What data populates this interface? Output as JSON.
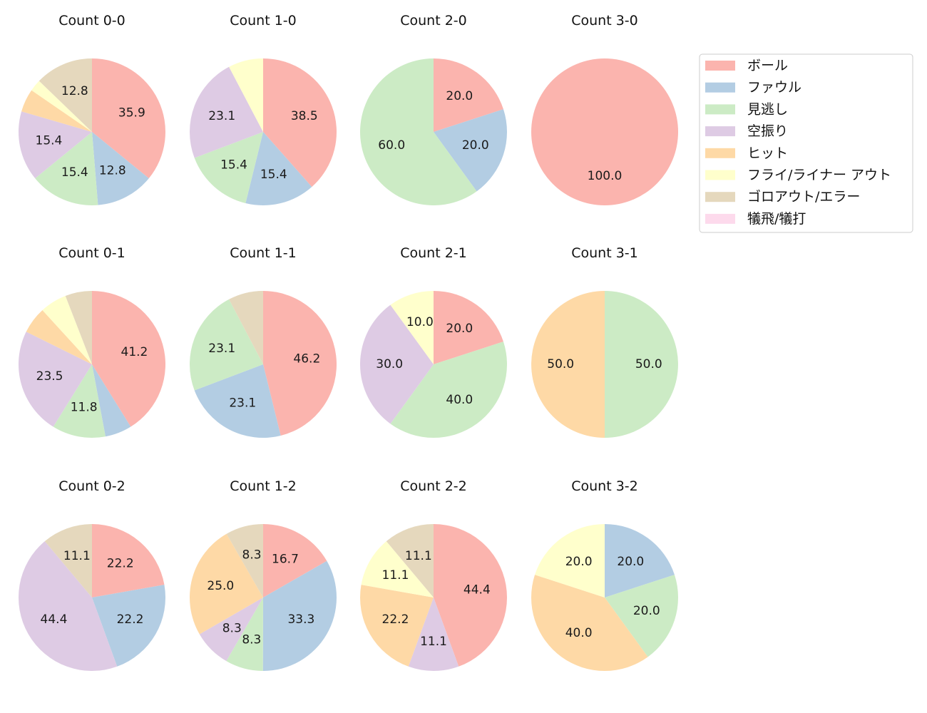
{
  "chart_data": {
    "type": "pie",
    "legend": {
      "position": "top-right",
      "entries": [
        {
          "name": "ボール",
          "color": "#fbb4ae"
        },
        {
          "name": "ファウル",
          "color": "#b3cde3"
        },
        {
          "name": "見逃し",
          "color": "#ccebc5"
        },
        {
          "name": "空振り",
          "color": "#decbe4"
        },
        {
          "name": "ヒット",
          "color": "#fed9a6"
        },
        {
          "name": "フライ/ライナー アウト",
          "color": "#ffffcc"
        },
        {
          "name": "ゴロアウト/エラー",
          "color": "#e5d8bd"
        },
        {
          "name": "犠飛/犠打",
          "color": "#fddaec"
        }
      ]
    },
    "pies": [
      {
        "title": "Count 0-0",
        "values": [
          35.9,
          12.8,
          15.4,
          15.4,
          5.1,
          2.6,
          12.8,
          0
        ],
        "labels": [
          "35.9",
          "12.8",
          "15.4",
          "15.4",
          "",
          "",
          "12.8",
          ""
        ]
      },
      {
        "title": "Count 1-0",
        "values": [
          38.5,
          15.4,
          15.4,
          23.1,
          0,
          7.7,
          0,
          0
        ],
        "labels": [
          "38.5",
          "15.4",
          "15.4",
          "23.1",
          "",
          "",
          "",
          ""
        ]
      },
      {
        "title": "Count 2-0",
        "values": [
          20.0,
          20.0,
          60.0,
          0,
          0,
          0,
          0,
          0
        ],
        "labels": [
          "20.0",
          "20.0",
          "60.0",
          "",
          "",
          "",
          "",
          ""
        ]
      },
      {
        "title": "Count 3-0",
        "values": [
          100.0,
          0,
          0,
          0,
          0,
          0,
          0,
          0
        ],
        "labels": [
          "100.0",
          "",
          "",
          "",
          "",
          "",
          "",
          ""
        ]
      },
      {
        "title": "Count 0-1",
        "values": [
          41.2,
          5.9,
          11.8,
          23.5,
          5.9,
          5.9,
          5.9,
          0
        ],
        "labels": [
          "41.2",
          "",
          "11.8",
          "23.5",
          "",
          "",
          "",
          ""
        ]
      },
      {
        "title": "Count 1-1",
        "values": [
          46.2,
          23.1,
          23.1,
          0,
          0,
          0,
          7.7,
          0
        ],
        "labels": [
          "46.2",
          "23.1",
          "23.1",
          "",
          "",
          "",
          "",
          ""
        ]
      },
      {
        "title": "Count 2-1",
        "values": [
          20.0,
          0,
          40.0,
          30.0,
          0,
          10.0,
          0,
          0
        ],
        "labels": [
          "20.0",
          "",
          "40.0",
          "30.0",
          "",
          "10.0",
          "",
          ""
        ]
      },
      {
        "title": "Count 3-1",
        "values": [
          0,
          0,
          50.0,
          0,
          50.0,
          0,
          0,
          0
        ],
        "labels": [
          "",
          "",
          "50.0",
          "",
          "50.0",
          "",
          "",
          ""
        ]
      },
      {
        "title": "Count 0-2",
        "values": [
          22.2,
          22.2,
          0,
          44.4,
          0,
          0,
          11.1,
          0
        ],
        "labels": [
          "22.2",
          "22.2",
          "",
          "44.4",
          "",
          "",
          "11.1",
          ""
        ]
      },
      {
        "title": "Count 1-2",
        "values": [
          16.7,
          33.3,
          8.3,
          8.3,
          25.0,
          0,
          8.3,
          0
        ],
        "labels": [
          "16.7",
          "33.3",
          "8.3",
          "8.3",
          "25.0",
          "",
          "8.3",
          ""
        ]
      },
      {
        "title": "Count 2-2",
        "values": [
          44.4,
          0,
          0,
          11.1,
          22.2,
          11.1,
          11.1,
          0
        ],
        "labels": [
          "44.4",
          "",
          "",
          "11.1",
          "22.2",
          "11.1",
          "11.1",
          ""
        ]
      },
      {
        "title": "Count 3-2",
        "values": [
          0,
          20.0,
          20.0,
          0,
          40.0,
          20.0,
          0,
          0
        ],
        "labels": [
          "",
          "20.0",
          "20.0",
          "",
          "40.0",
          "20.0",
          "",
          ""
        ]
      }
    ]
  }
}
